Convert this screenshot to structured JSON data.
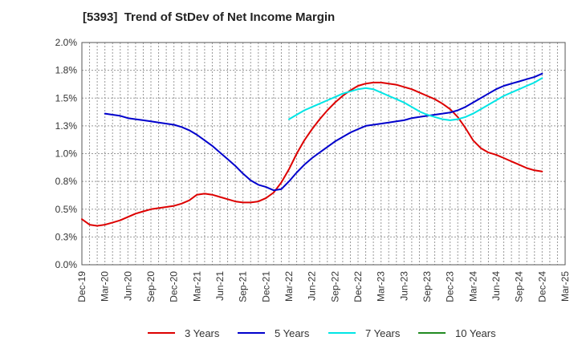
{
  "chart_data": {
    "type": "line",
    "title": "[5393]  Trend of StDev of Net Income Margin",
    "xlabel": "",
    "ylabel": "",
    "y_ticks": [
      "0.0%",
      "0.3%",
      "0.5%",
      "0.8%",
      "1.0%",
      "1.3%",
      "1.5%",
      "1.8%",
      "2.0%"
    ],
    "ylim": [
      0,
      2.0
    ],
    "x_ticks": [
      "Dec-19",
      "Mar-20",
      "Jun-20",
      "Sep-20",
      "Dec-20",
      "Mar-21",
      "Jun-21",
      "Sep-21",
      "Dec-21",
      "Mar-22",
      "Jun-22",
      "Sep-22",
      "Dec-22",
      "Mar-23",
      "Jun-23",
      "Sep-23",
      "Dec-23",
      "Mar-24",
      "Jun-24",
      "Sep-24",
      "Dec-24",
      "Mar-25"
    ],
    "grid": true,
    "legend_position": "bottom",
    "series": [
      {
        "name": "3 Years",
        "color": "#dd0000",
        "x": [
          "Dec-19",
          "Jan-20",
          "Feb-20",
          "Mar-20",
          "Apr-20",
          "May-20",
          "Jun-20",
          "Jul-20",
          "Aug-20",
          "Sep-20",
          "Oct-20",
          "Nov-20",
          "Dec-20",
          "Jan-21",
          "Feb-21",
          "Mar-21",
          "Apr-21",
          "May-21",
          "Jun-21",
          "Jul-21",
          "Aug-21",
          "Sep-21",
          "Oct-21",
          "Nov-21",
          "Dec-21",
          "Jan-22",
          "Feb-22",
          "Mar-22",
          "Apr-22",
          "May-22",
          "Jun-22",
          "Jul-22",
          "Aug-22",
          "Sep-22",
          "Oct-22",
          "Nov-22",
          "Dec-22",
          "Jan-23",
          "Feb-23",
          "Mar-23",
          "Apr-23",
          "May-23",
          "Jun-23",
          "Jul-23",
          "Aug-23",
          "Sep-23",
          "Oct-23",
          "Nov-23",
          "Dec-23",
          "Jan-24",
          "Feb-24",
          "Mar-24",
          "Apr-24",
          "May-24",
          "Jun-24",
          "Jul-24",
          "Aug-24",
          "Sep-24",
          "Oct-24",
          "Nov-24",
          "Dec-24"
        ],
        "values": [
          0.41,
          0.36,
          0.35,
          0.36,
          0.38,
          0.4,
          0.43,
          0.46,
          0.48,
          0.5,
          0.51,
          0.52,
          0.53,
          0.55,
          0.58,
          0.63,
          0.64,
          0.63,
          0.61,
          0.59,
          0.57,
          0.56,
          0.56,
          0.57,
          0.6,
          0.65,
          0.74,
          0.86,
          1.0,
          1.12,
          1.22,
          1.31,
          1.39,
          1.46,
          1.52,
          1.57,
          1.61,
          1.63,
          1.64,
          1.64,
          1.63,
          1.62,
          1.6,
          1.58,
          1.55,
          1.52,
          1.49,
          1.45,
          1.4,
          1.33,
          1.23,
          1.12,
          1.05,
          1.01,
          0.99,
          0.96,
          0.93,
          0.9,
          0.87,
          0.85,
          0.84
        ]
      },
      {
        "name": "5 Years",
        "color": "#0000cc",
        "x": [
          "Dec-19",
          "Jan-20",
          "Feb-20",
          "Mar-20",
          "Apr-20",
          "May-20",
          "Jun-20",
          "Jul-20",
          "Aug-20",
          "Sep-20",
          "Oct-20",
          "Nov-20",
          "Dec-20",
          "Jan-21",
          "Feb-21",
          "Mar-21",
          "Apr-21",
          "May-21",
          "Jun-21",
          "Jul-21",
          "Aug-21",
          "Sep-21",
          "Oct-21",
          "Nov-21",
          "Dec-21",
          "Jan-22",
          "Feb-22",
          "Mar-22",
          "Apr-22",
          "May-22",
          "Jun-22",
          "Jul-22",
          "Aug-22",
          "Sep-22",
          "Oct-22",
          "Nov-22",
          "Dec-22",
          "Jan-23",
          "Feb-23",
          "Mar-23",
          "Apr-23",
          "May-23",
          "Jun-23",
          "Jul-23",
          "Aug-23",
          "Sep-23",
          "Oct-23",
          "Nov-23",
          "Dec-23",
          "Jan-24",
          "Feb-24",
          "Mar-24",
          "Apr-24",
          "May-24",
          "Jun-24",
          "Jul-24",
          "Aug-24",
          "Sep-24",
          "Oct-24",
          "Nov-24",
          "Dec-24"
        ],
        "values": [
          null,
          null,
          null,
          1.36,
          1.35,
          1.34,
          1.32,
          1.31,
          1.3,
          1.29,
          1.28,
          1.27,
          1.26,
          1.24,
          1.21,
          1.17,
          1.12,
          1.07,
          1.01,
          0.95,
          0.89,
          0.82,
          0.76,
          0.72,
          0.7,
          0.67,
          0.68,
          0.75,
          0.83,
          0.9,
          0.96,
          1.01,
          1.06,
          1.11,
          1.15,
          1.19,
          1.22,
          1.25,
          1.26,
          1.27,
          1.28,
          1.29,
          1.3,
          1.32,
          1.33,
          1.34,
          1.35,
          1.36,
          1.37,
          1.39,
          1.42,
          1.46,
          1.5,
          1.54,
          1.58,
          1.61,
          1.63,
          1.65,
          1.67,
          1.69,
          1.72
        ]
      },
      {
        "name": "7 Years",
        "color": "#00e5e5",
        "x": [
          "Mar-22",
          "Apr-22",
          "May-22",
          "Jun-22",
          "Jul-22",
          "Aug-22",
          "Sep-22",
          "Oct-22",
          "Nov-22",
          "Dec-22",
          "Jan-23",
          "Feb-23",
          "Mar-23",
          "Apr-23",
          "May-23",
          "Jun-23",
          "Jul-23",
          "Aug-23",
          "Sep-23",
          "Oct-23",
          "Nov-23",
          "Dec-23",
          "Jan-24",
          "Feb-24",
          "Mar-24",
          "Apr-24",
          "May-24",
          "Jun-24",
          "Jul-24",
          "Aug-24",
          "Sep-24",
          "Oct-24",
          "Nov-24",
          "Dec-24"
        ],
        "values": [
          1.31,
          1.35,
          1.39,
          1.42,
          1.45,
          1.48,
          1.51,
          1.54,
          1.56,
          1.58,
          1.59,
          1.58,
          1.55,
          1.52,
          1.49,
          1.46,
          1.42,
          1.38,
          1.35,
          1.33,
          1.31,
          1.3,
          1.31,
          1.33,
          1.36,
          1.4,
          1.44,
          1.48,
          1.52,
          1.55,
          1.58,
          1.61,
          1.64,
          1.68
        ]
      },
      {
        "name": "10 Years",
        "color": "#228B22",
        "x": [],
        "values": []
      }
    ]
  }
}
